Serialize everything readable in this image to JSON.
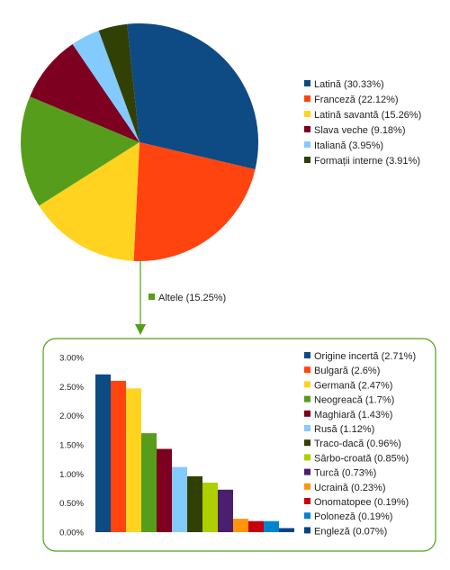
{
  "chart_data": [
    {
      "type": "pie",
      "legend_position": "right",
      "slices": [
        {
          "label": "Latină (30.33%)",
          "value": 30.33,
          "color": "#0e4a84"
        },
        {
          "label": "Franceză (22.12%)",
          "value": 22.12,
          "color": "#ff4410"
        },
        {
          "label": "Latină savantă (15.26%)",
          "value": 15.26,
          "color": "#ffd320"
        },
        {
          "label": "Altele (15.25%)",
          "value": 15.25,
          "color": "#579d1c"
        },
        {
          "label": "Slava veche (9.18%)",
          "value": 9.18,
          "color": "#7e0021"
        },
        {
          "label": "Italiană (3.95%)",
          "value": 3.95,
          "color": "#83caff"
        },
        {
          "label": "Formații interne (3.91%)",
          "value": 3.91,
          "color": "#314004"
        }
      ],
      "callout_label": "Altele (15.25%)"
    },
    {
      "type": "bar",
      "legend_position": "right",
      "ylim": [
        0,
        3.0
      ],
      "y_ticks": [
        "0.00%",
        "0.50%",
        "1.00%",
        "1.50%",
        "2.00%",
        "2.50%",
        "3.00%"
      ],
      "grid": false,
      "bars": [
        {
          "label": "Origine incertă (2.71%)",
          "value": 2.71,
          "color": "#0e4a84"
        },
        {
          "label": "Bulgară (2.6%)",
          "value": 2.6,
          "color": "#ff4410"
        },
        {
          "label": "Germană (2.47%)",
          "value": 2.47,
          "color": "#ffd320"
        },
        {
          "label": "Neogreacă (1.7%)",
          "value": 1.7,
          "color": "#579d1c"
        },
        {
          "label": "Maghiară (1.43%)",
          "value": 1.43,
          "color": "#7e0021"
        },
        {
          "label": "Rusă (1.12%)",
          "value": 1.12,
          "color": "#83caff"
        },
        {
          "label": "Traco-dacă (0.96%)",
          "value": 0.96,
          "color": "#314004"
        },
        {
          "label": "Sârbo-croată (0.85%)",
          "value": 0.85,
          "color": "#aecf00"
        },
        {
          "label": "Turcă (0.73%)",
          "value": 0.73,
          "color": "#4b1f6f"
        },
        {
          "label": "Ucraină (0.23%)",
          "value": 0.23,
          "color": "#ff950e"
        },
        {
          "label": "Onomatopee (0.19%)",
          "value": 0.19,
          "color": "#c5000b"
        },
        {
          "label": "Poloneză (0.19%)",
          "value": 0.19,
          "color": "#0084d1"
        },
        {
          "label": "Engleză (0.07%)",
          "value": 0.07,
          "color": "#004586"
        }
      ]
    }
  ],
  "colors": {
    "frame_border": "#579d1c",
    "arrow": "#579d1c",
    "axis_text": "#222222"
  }
}
